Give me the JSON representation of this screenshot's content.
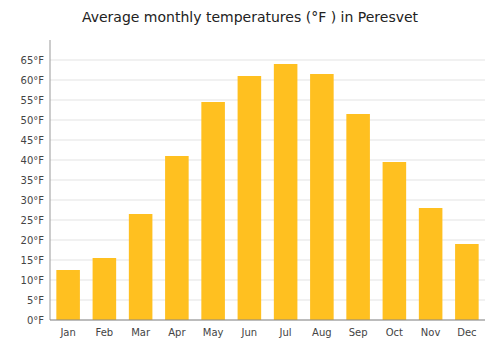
{
  "chart_data": {
    "type": "bar",
    "title": "Average monthly temperatures (°F ) in Peresvet",
    "categories": [
      "Jan",
      "Feb",
      "Mar",
      "Apr",
      "May",
      "Jun",
      "Jul",
      "Aug",
      "Sep",
      "Oct",
      "Nov",
      "Dec"
    ],
    "values": [
      12.5,
      15.5,
      26.5,
      41.0,
      54.5,
      61.0,
      64.0,
      61.5,
      51.5,
      39.5,
      28.0,
      19.0
    ],
    "color": "#FFC020",
    "ylim": [
      0,
      70
    ],
    "yticks": [
      {
        "value": 0,
        "label": "0°F"
      },
      {
        "value": 5,
        "label": "5°F"
      },
      {
        "value": 10,
        "label": "10°F"
      },
      {
        "value": 15,
        "label": "15°F"
      },
      {
        "value": 20,
        "label": "20°F"
      },
      {
        "value": 25,
        "label": "25°F"
      },
      {
        "value": 30,
        "label": "30°F"
      },
      {
        "value": 35,
        "label": "35°F"
      },
      {
        "value": 40,
        "label": "40°F"
      },
      {
        "value": 45,
        "label": "45°F"
      },
      {
        "value": 50,
        "label": "50°F"
      },
      {
        "value": 55,
        "label": "55°F"
      },
      {
        "value": 60,
        "label": "60°F"
      },
      {
        "value": 65,
        "label": "65°F"
      }
    ],
    "grid": true
  }
}
